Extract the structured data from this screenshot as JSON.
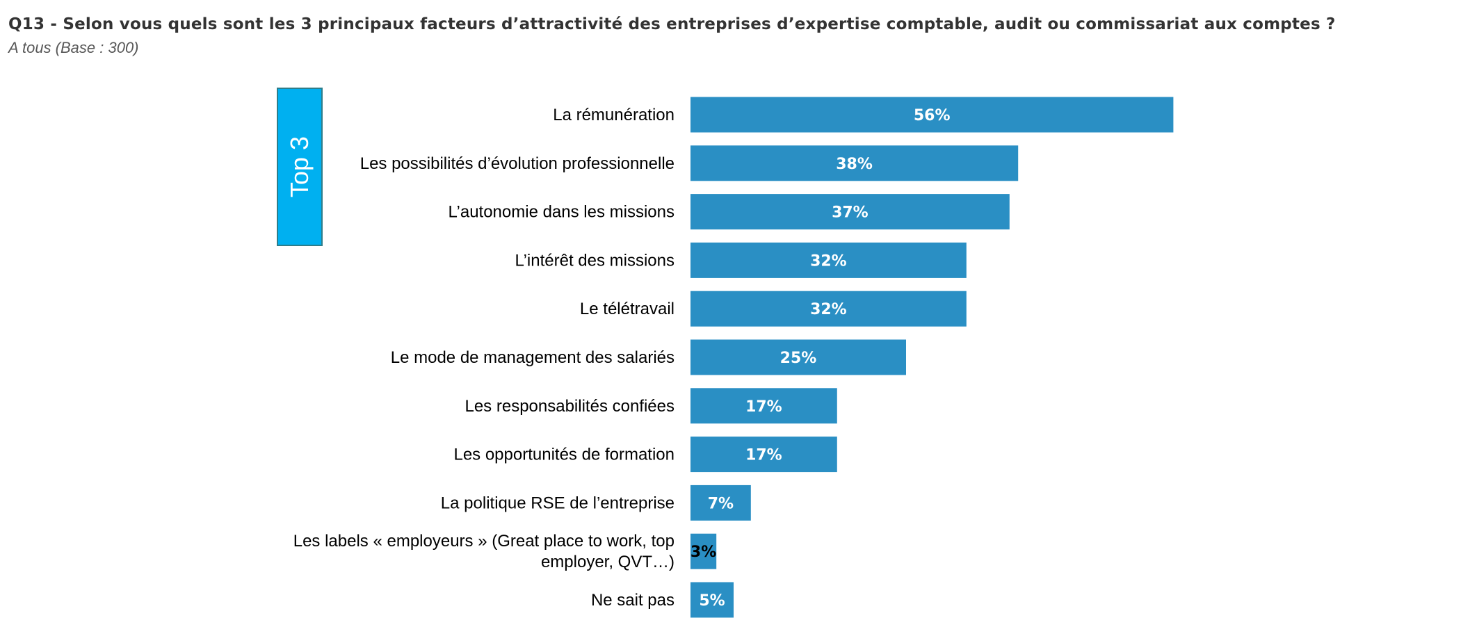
{
  "title": "Q13 - Selon vous quels sont les 3 principaux  facteurs d’attractivité des entreprises d’expertise comptable, audit ou commissariat aux comptes ?",
  "subtitle": "A tous (Base : 300)",
  "top3_label": "Top 3",
  "colors": {
    "bar": "#2a8fc4",
    "top3_box": "#00b0f0",
    "label_inside": "#ffffff",
    "label_outside": "#000000"
  },
  "chart_data": {
    "type": "bar",
    "orientation": "horizontal",
    "categories": [
      [
        "La rémunération"
      ],
      [
        "Les possibilités d’évolution professionnelle"
      ],
      [
        "L’autonomie dans les missions"
      ],
      [
        "L’intérêt des missions"
      ],
      [
        "Le télétravail"
      ],
      [
        "Le mode de management des salariés"
      ],
      [
        "Les responsabilités confiées"
      ],
      [
        "Les opportunités de formation"
      ],
      [
        "La politique RSE de l’entreprise"
      ],
      [
        "Les labels « employeurs » (Great place to work, top",
        "employer, QVT…)"
      ],
      [
        "Ne sait pas"
      ]
    ],
    "values": [
      56,
      38,
      37,
      32,
      32,
      25,
      17,
      17,
      7,
      3,
      5
    ],
    "value_labels": [
      "56%",
      "38%",
      "37%",
      "32%",
      "32%",
      "25%",
      "17%",
      "17%",
      "7%",
      "3%",
      "5%"
    ],
    "unit": "%",
    "grid": false,
    "legend": "none"
  }
}
